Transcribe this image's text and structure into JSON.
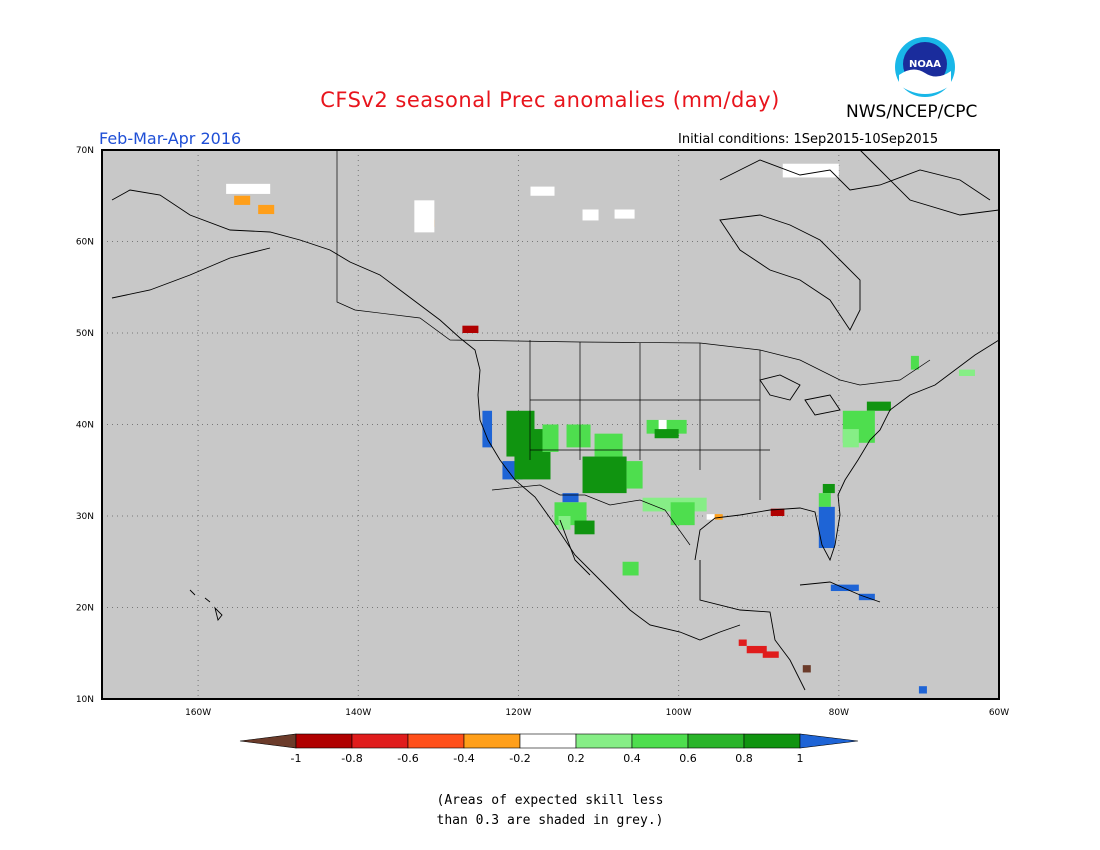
{
  "title": "CFSv2 seasonal Prec anomalies (mm/day)",
  "organization": "NWS/NCEP/CPC",
  "logo_text": "NOAA",
  "season": "Feb-Mar-Apr 2016",
  "initial_conditions": "Initial conditions: 1Sep2015-10Sep2015",
  "note_line1": "(Areas of expected skill less",
  "note_line2": "than 0.3 are shaded in grey.)",
  "map": {
    "lon_range": [
      -172,
      -60
    ],
    "lat_range": [
      10,
      70
    ],
    "lat_labels": [
      "10N",
      "20N",
      "30N",
      "40N",
      "50N",
      "60N",
      "70N"
    ],
    "lat_values": [
      10,
      20,
      30,
      40,
      50,
      60,
      70
    ],
    "lon_labels": [
      "160W",
      "140W",
      "120W",
      "100W",
      "80W",
      "60W"
    ],
    "lon_values": [
      -160,
      -140,
      -120,
      -100,
      -80,
      -60
    ],
    "background_color": "#c8c8c8",
    "grid": "dotted"
  },
  "legend": {
    "labels": [
      "-1",
      "-0.8",
      "-0.6",
      "-0.4",
      "-0.2",
      "0.2",
      "0.4",
      "0.6",
      "0.8",
      "1"
    ],
    "colors": [
      "#6b3b2a",
      "#b00000",
      "#e01c1c",
      "#ff4f1a",
      "#ff9f1a",
      "#ffffff",
      "#86ee86",
      "#4ede4e",
      "#2ab42a",
      "#109410",
      "#1e64d6"
    ]
  },
  "anomaly_cells": [
    {
      "lon": -155.5,
      "lat": 65.0,
      "lon2": -153.5,
      "lat2": 64.0,
      "class": "orange"
    },
    {
      "lon": -152.5,
      "lat": 64.0,
      "lon2": -150.5,
      "lat2": 63.0,
      "class": "orange"
    },
    {
      "lon": -156.5,
      "lat": 66.3,
      "lon2": -151.0,
      "lat2": 65.2,
      "class": "white"
    },
    {
      "lon": -131.5,
      "lat": 62.4,
      "lon2": -130.5,
      "lat2": 61.6,
      "class": "orange"
    },
    {
      "lon": -127.0,
      "lat": 50.8,
      "lon2": -125.0,
      "lat2": 50.0,
      "class": "dkred"
    },
    {
      "lon": -124.5,
      "lat": 41.5,
      "lon2": -123.3,
      "lat2": 37.5,
      "class": "blue"
    },
    {
      "lon": -122.0,
      "lat": 36.0,
      "lon2": -119.5,
      "lat2": 34.0,
      "class": "blue"
    },
    {
      "lon": -114.5,
      "lat": 32.5,
      "lon2": -112.5,
      "lat2": 31.5,
      "class": "blue"
    },
    {
      "lon": -121.5,
      "lat": 41.5,
      "lon2": -118.0,
      "lat2": 36.5,
      "class": "dkgreen"
    },
    {
      "lon": -120.5,
      "lat": 39.5,
      "lon2": -116.0,
      "lat2": 34.0,
      "class": "dkgreen"
    },
    {
      "lon": -117.0,
      "lat": 40.0,
      "lon2": -115.0,
      "lat2": 37.0,
      "class": "green"
    },
    {
      "lon": -114.0,
      "lat": 40.0,
      "lon2": -111.0,
      "lat2": 37.5,
      "class": "green"
    },
    {
      "lon": -112.0,
      "lat": 36.5,
      "lon2": -106.5,
      "lat2": 32.5,
      "class": "dkgreen"
    },
    {
      "lon": -110.5,
      "lat": 39.0,
      "lon2": -107.0,
      "lat2": 36.5,
      "class": "green"
    },
    {
      "lon": -106.5,
      "lat": 36.0,
      "lon2": -104.5,
      "lat2": 33.0,
      "class": "green"
    },
    {
      "lon": -104.0,
      "lat": 40.5,
      "lon2": -99.0,
      "lat2": 39.0,
      "class": "green"
    },
    {
      "lon": -103.0,
      "lat": 39.5,
      "lon2": -100.0,
      "lat2": 38.5,
      "class": "dkgreen"
    },
    {
      "lon": -115.5,
      "lat": 31.5,
      "lon2": -111.5,
      "lat2": 29.0,
      "class": "green"
    },
    {
      "lon": -113.0,
      "lat": 29.5,
      "lon2": -110.5,
      "lat2": 28.0,
      "class": "dkgreen"
    },
    {
      "lon": -115.0,
      "lat": 30.0,
      "lon2": -113.5,
      "lat2": 28.5,
      "class": "ltgreen"
    },
    {
      "lon": -104.5,
      "lat": 32.0,
      "lon2": -96.5,
      "lat2": 30.5,
      "class": "ltgreen"
    },
    {
      "lon": -101.0,
      "lat": 31.5,
      "lon2": -98.0,
      "lat2": 29.0,
      "class": "green"
    },
    {
      "lon": -107.0,
      "lat": 25.0,
      "lon2": -105.0,
      "lat2": 23.5,
      "class": "green"
    },
    {
      "lon": -102.5,
      "lat": 40.5,
      "lon2": -101.5,
      "lat2": 39.5,
      "class": "white"
    },
    {
      "lon": -96.5,
      "lat": 30.2,
      "lon2": -95.5,
      "lat2": 29.6,
      "class": "white"
    },
    {
      "lon": -95.5,
      "lat": 30.2,
      "lon2": -94.5,
      "lat2": 29.6,
      "class": "orange"
    },
    {
      "lon": -88.5,
      "lat": 30.8,
      "lon2": -86.8,
      "lat2": 30.0,
      "class": "dkred"
    },
    {
      "lon": -82.0,
      "lat": 33.5,
      "lon2": -80.5,
      "lat2": 32.5,
      "class": "dkgreen"
    },
    {
      "lon": -82.5,
      "lat": 32.5,
      "lon2": -81.0,
      "lat2": 31.0,
      "class": "green"
    },
    {
      "lon": -82.5,
      "lat": 31.0,
      "lon2": -80.5,
      "lat2": 26.5,
      "class": "blue"
    },
    {
      "lon": -76.5,
      "lat": 42.5,
      "lon2": -73.5,
      "lat2": 41.5,
      "class": "dkgreen"
    },
    {
      "lon": -79.5,
      "lat": 41.5,
      "lon2": -75.5,
      "lat2": 38.0,
      "class": "green"
    },
    {
      "lon": -79.5,
      "lat": 39.5,
      "lon2": -77.5,
      "lat2": 37.5,
      "class": "ltgreen"
    },
    {
      "lon": -71.0,
      "lat": 47.5,
      "lon2": -70.0,
      "lat2": 46.0,
      "class": "green"
    },
    {
      "lon": -65.0,
      "lat": 46.0,
      "lon2": -63.0,
      "lat2": 45.3,
      "class": "ltgreen"
    },
    {
      "lon": -81.0,
      "lat": 22.5,
      "lon2": -77.5,
      "lat2": 21.8,
      "class": "blue"
    },
    {
      "lon": -77.5,
      "lat": 21.5,
      "lon2": -75.5,
      "lat2": 20.8,
      "class": "blue"
    },
    {
      "lon": -92.5,
      "lat": 16.5,
      "lon2": -91.5,
      "lat2": 15.8,
      "class": "red"
    },
    {
      "lon": -91.5,
      "lat": 15.8,
      "lon2": -89.0,
      "lat2": 15.0,
      "class": "red"
    },
    {
      "lon": -89.5,
      "lat": 15.2,
      "lon2": -87.5,
      "lat2": 14.5,
      "class": "red"
    },
    {
      "lon": -84.5,
      "lat": 13.7,
      "lon2": -83.5,
      "lat2": 12.9,
      "class": "brown"
    },
    {
      "lon": -70.0,
      "lat": 11.4,
      "lon2": -69.0,
      "lat2": 10.6,
      "class": "blue"
    },
    {
      "lon": -118.5,
      "lat": 66.0,
      "lon2": -115.5,
      "lat2": 65.0,
      "class": "white"
    },
    {
      "lon": -108.0,
      "lat": 63.5,
      "lon2": -105.5,
      "lat2": 62.5,
      "class": "white"
    },
    {
      "lon": -112.0,
      "lat": 63.5,
      "lon2": -110.0,
      "lat2": 62.3,
      "class": "white"
    },
    {
      "lon": -87.0,
      "lat": 68.5,
      "lon2": -80.0,
      "lat2": 67.0,
      "class": "white"
    },
    {
      "lon": -133.0,
      "lat": 64.5,
      "lon2": -130.5,
      "lat2": 61.0,
      "class": "white"
    }
  ]
}
